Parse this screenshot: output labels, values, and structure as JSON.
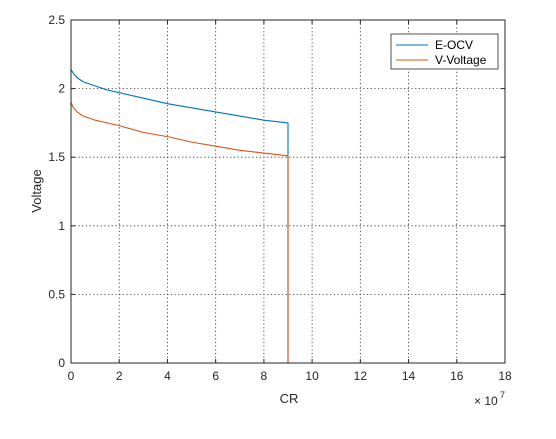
{
  "chart_data": {
    "type": "line",
    "title": "",
    "xlabel": "CR",
    "ylabel": "Voltage",
    "x_exponent_label": "× 10",
    "x_exponent": "7",
    "xlim": [
      0,
      18
    ],
    "ylim": [
      0,
      2.5
    ],
    "x_scale_factor": 10000000,
    "xticks": [
      0,
      2,
      4,
      6,
      8,
      10,
      12,
      14,
      16,
      18
    ],
    "yticks": [
      0,
      0.5,
      1,
      1.5,
      2,
      2.5
    ],
    "xtick_labels": [
      "0",
      "2",
      "4",
      "6",
      "8",
      "10",
      "12",
      "14",
      "16",
      "18"
    ],
    "ytick_labels": [
      "0",
      "0.5",
      "1",
      "1.5",
      "2",
      "2.5"
    ],
    "grid": true,
    "legend_position": "top-right",
    "colors": {
      "E-OCV": "#0072BD",
      "V-Voltage": "#D95319"
    },
    "series": [
      {
        "name": "E-OCV",
        "x": [
          0,
          0.1,
          0.25,
          0.5,
          1,
          1.5,
          2,
          3,
          4,
          5,
          6,
          7,
          8,
          8.5,
          9,
          9,
          9.5,
          12,
          14,
          16,
          17.7
        ],
        "y": [
          2.14,
          2.11,
          2.08,
          2.05,
          2.02,
          1.99,
          1.97,
          1.93,
          1.89,
          1.86,
          1.83,
          1.8,
          1.77,
          1.76,
          1.75,
          0,
          0,
          0,
          0,
          0,
          0
        ]
      },
      {
        "name": "V-Voltage",
        "x": [
          0,
          0.1,
          0.25,
          0.5,
          1,
          1.5,
          2,
          3,
          4,
          5,
          6,
          7,
          8,
          8.5,
          9,
          9,
          9.5,
          12,
          14,
          16,
          17.7
        ],
        "y": [
          1.9,
          1.86,
          1.83,
          1.8,
          1.77,
          1.75,
          1.73,
          1.68,
          1.65,
          1.61,
          1.58,
          1.55,
          1.53,
          1.52,
          1.51,
          0,
          0,
          0,
          0,
          0,
          0
        ]
      }
    ]
  }
}
